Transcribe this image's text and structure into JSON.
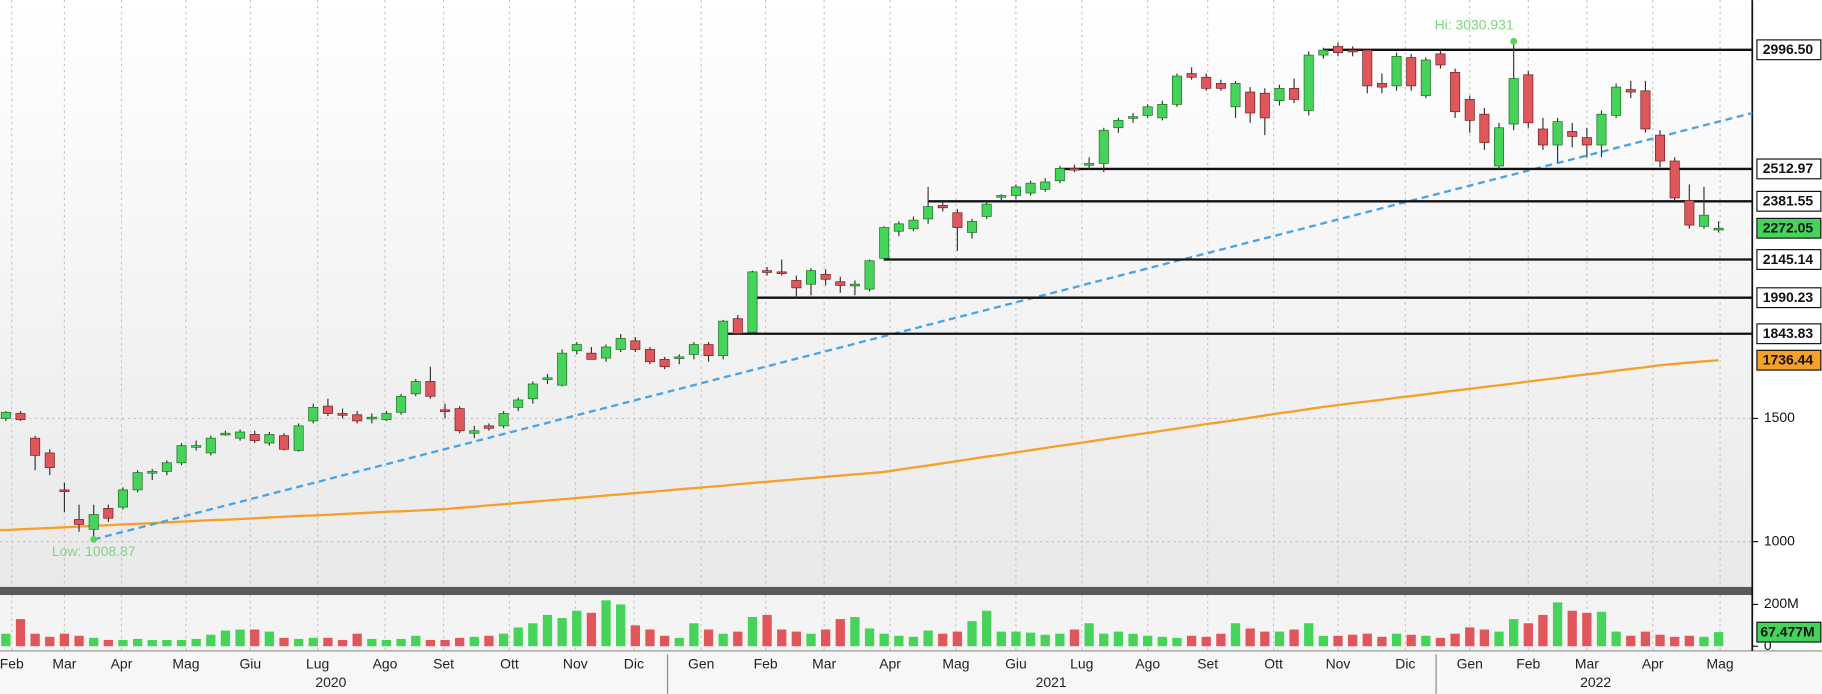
{
  "chart_data": {
    "type": "candlestick",
    "xlim": [
      -0.4,
      119.3
    ],
    "ylim": [
      816,
      3198
    ],
    "yticks": [
      1000,
      1500
    ],
    "grid": true,
    "up_color": "#46d35a",
    "down_color": "#e0575b",
    "candles": [
      [
        1500,
        1530,
        1490,
        1525
      ],
      [
        1520,
        1530,
        1490,
        1495
      ],
      [
        1420,
        1430,
        1290,
        1350
      ],
      [
        1360,
        1375,
        1270,
        1300
      ],
      [
        1210,
        1240,
        1120,
        1205
      ],
      [
        1090,
        1150,
        1040,
        1070
      ],
      [
        1050,
        1150,
        1008.87,
        1110
      ],
      [
        1135,
        1150,
        1080,
        1095
      ],
      [
        1140,
        1220,
        1130,
        1210
      ],
      [
        1210,
        1290,
        1200,
        1280
      ],
      [
        1280,
        1295,
        1250,
        1285
      ],
      [
        1285,
        1330,
        1270,
        1320
      ],
      [
        1320,
        1400,
        1310,
        1390
      ],
      [
        1385,
        1410,
        1370,
        1390
      ],
      [
        1360,
        1430,
        1350,
        1420
      ],
      [
        1440,
        1450,
        1430,
        1440
      ],
      [
        1420,
        1455,
        1410,
        1445
      ],
      [
        1435,
        1450,
        1400,
        1410
      ],
      [
        1400,
        1445,
        1390,
        1435
      ],
      [
        1430,
        1440,
        1370,
        1375
      ],
      [
        1370,
        1480,
        1365,
        1470
      ],
      [
        1490,
        1560,
        1480,
        1545
      ],
      [
        1550,
        1580,
        1510,
        1520
      ],
      [
        1520,
        1540,
        1500,
        1515
      ],
      [
        1515,
        1530,
        1480,
        1490
      ],
      [
        1505,
        1520,
        1480,
        1505
      ],
      [
        1495,
        1530,
        1490,
        1520
      ],
      [
        1525,
        1600,
        1515,
        1590
      ],
      [
        1600,
        1660,
        1590,
        1650
      ],
      [
        1650,
        1710,
        1580,
        1590
      ],
      [
        1535,
        1560,
        1500,
        1530
      ],
      [
        1540,
        1550,
        1440,
        1450
      ],
      [
        1440,
        1470,
        1420,
        1450
      ],
      [
        1470,
        1480,
        1450,
        1460
      ],
      [
        1470,
        1530,
        1460,
        1520
      ],
      [
        1545,
        1585,
        1530,
        1575
      ],
      [
        1580,
        1650,
        1560,
        1640
      ],
      [
        1660,
        1680,
        1640,
        1665
      ],
      [
        1635,
        1780,
        1630,
        1765
      ],
      [
        1775,
        1810,
        1760,
        1800
      ],
      [
        1765,
        1790,
        1740,
        1740
      ],
      [
        1745,
        1800,
        1730,
        1790
      ],
      [
        1780,
        1843,
        1770,
        1825
      ],
      [
        1815,
        1830,
        1770,
        1780
      ],
      [
        1780,
        1790,
        1720,
        1730
      ],
      [
        1740,
        1750,
        1700,
        1710
      ],
      [
        1745,
        1760,
        1720,
        1750
      ],
      [
        1760,
        1810,
        1740,
        1800
      ],
      [
        1800,
        1810,
        1730,
        1755
      ],
      [
        1755,
        1900,
        1740,
        1895
      ],
      [
        1905,
        1920,
        1840,
        1845
      ],
      [
        1850,
        2100,
        1845,
        2095
      ],
      [
        2100,
        2115,
        2080,
        2095
      ],
      [
        2095,
        2145,
        2080,
        2090
      ],
      [
        2060,
        2080,
        1990,
        2030
      ],
      [
        2045,
        2110,
        2000,
        2100
      ],
      [
        2085,
        2105,
        2040,
        2065
      ],
      [
        2055,
        2075,
        2010,
        2040
      ],
      [
        2040,
        2060,
        2000,
        2045
      ],
      [
        2025,
        2145,
        2015,
        2140
      ],
      [
        2150,
        2280,
        2140,
        2275
      ],
      [
        2260,
        2300,
        2240,
        2290
      ],
      [
        2270,
        2320,
        2260,
        2305
      ],
      [
        2310,
        2440,
        2290,
        2360
      ],
      [
        2365,
        2381,
        2340,
        2355
      ],
      [
        2335,
        2350,
        2180,
        2275
      ],
      [
        2255,
        2310,
        2230,
        2300
      ],
      [
        2320,
        2380,
        2310,
        2370
      ],
      [
        2400,
        2410,
        2380,
        2405
      ],
      [
        2405,
        2450,
        2390,
        2440
      ],
      [
        2415,
        2465,
        2405,
        2455
      ],
      [
        2430,
        2475,
        2420,
        2460
      ],
      [
        2465,
        2525,
        2455,
        2515
      ],
      [
        2515,
        2530,
        2500,
        2510
      ],
      [
        2530,
        2560,
        2510,
        2535
      ],
      [
        2535,
        2680,
        2500,
        2670
      ],
      [
        2680,
        2720,
        2660,
        2710
      ],
      [
        2720,
        2740,
        2700,
        2725
      ],
      [
        2730,
        2775,
        2720,
        2765
      ],
      [
        2720,
        2790,
        2710,
        2775
      ],
      [
        2775,
        2900,
        2765,
        2890
      ],
      [
        2900,
        2925,
        2875,
        2885
      ],
      [
        2885,
        2900,
        2830,
        2840
      ],
      [
        2860,
        2875,
        2830,
        2840
      ],
      [
        2765,
        2870,
        2720,
        2860
      ],
      [
        2825,
        2845,
        2700,
        2740
      ],
      [
        2820,
        2840,
        2650,
        2720
      ],
      [
        2790,
        2855,
        2770,
        2840
      ],
      [
        2840,
        2880,
        2780,
        2795
      ],
      [
        2750,
        2990,
        2730,
        2975
      ],
      [
        2975,
        3005,
        2960,
        2995
      ],
      [
        3010,
        3025,
        2970,
        2985
      ],
      [
        2995,
        3010,
        2970,
        2990
      ],
      [
        2995,
        3000,
        2820,
        2850
      ],
      [
        2860,
        2900,
        2820,
        2845
      ],
      [
        2850,
        2985,
        2830,
        2970
      ],
      [
        2965,
        2980,
        2830,
        2850
      ],
      [
        2810,
        2965,
        2800,
        2955
      ],
      [
        2980,
        2995,
        2920,
        2935
      ],
      [
        2905,
        2920,
        2720,
        2745
      ],
      [
        2795,
        2810,
        2660,
        2710
      ],
      [
        2735,
        2760,
        2590,
        2620
      ],
      [
        2525,
        2700,
        2510,
        2680
      ],
      [
        2695,
        3030.931,
        2670,
        2880
      ],
      [
        2895,
        2910,
        2680,
        2700
      ],
      [
        2675,
        2720,
        2590,
        2610
      ],
      [
        2610,
        2720,
        2540,
        2705
      ],
      [
        2665,
        2700,
        2600,
        2645
      ],
      [
        2640,
        2680,
        2560,
        2610
      ],
      [
        2610,
        2750,
        2560,
        2735
      ],
      [
        2730,
        2860,
        2720,
        2845
      ],
      [
        2835,
        2870,
        2800,
        2825
      ],
      [
        2830,
        2870,
        2660,
        2675
      ],
      [
        2650,
        2670,
        2520,
        2545
      ],
      [
        2545,
        2560,
        2380,
        2395
      ],
      [
        2385,
        2450,
        2270,
        2285
      ],
      [
        2280,
        2440,
        2270,
        2325
      ],
      [
        2270,
        2300,
        2255,
        2272.05
      ]
    ],
    "ma": {
      "color": "#f5a02a",
      "values": [
        1047,
        1050,
        1053,
        1055,
        1058,
        1061,
        1064,
        1067,
        1070,
        1072,
        1075,
        1078,
        1081,
        1084,
        1087,
        1089,
        1092,
        1095,
        1098,
        1101,
        1104,
        1106,
        1109,
        1112,
        1115,
        1118,
        1121,
        1123,
        1126,
        1129,
        1132,
        1137,
        1142,
        1147,
        1152,
        1157,
        1162,
        1167,
        1172,
        1177,
        1182,
        1187,
        1192,
        1197,
        1202,
        1207,
        1212,
        1217,
        1222,
        1227,
        1233,
        1238,
        1243,
        1248,
        1253,
        1258,
        1263,
        1268,
        1273,
        1278,
        1283,
        1292,
        1301,
        1309,
        1318,
        1327,
        1336,
        1345,
        1353,
        1362,
        1371,
        1380,
        1389,
        1397,
        1406,
        1415,
        1424,
        1433,
        1441,
        1450,
        1459,
        1468,
        1477,
        1485,
        1494,
        1503,
        1512,
        1521,
        1529,
        1538,
        1547,
        1554,
        1562,
        1569,
        1576,
        1584,
        1591,
        1598,
        1606,
        1613,
        1620,
        1628,
        1635,
        1642,
        1650,
        1657,
        1664,
        1672,
        1679,
        1686,
        1694,
        1701,
        1708,
        1716,
        1721,
        1727,
        1732,
        1736.44
      ]
    },
    "trendline": {
      "color": "#4aa3e6",
      "x": [
        6,
        119.3
      ],
      "values": [
        1008.87,
        2740
      ]
    },
    "levels": {
      "values": [
        2996.5,
        2512.97,
        2381.55,
        2145.14,
        1990.23,
        1843.83
      ],
      "value_labels": [
        "2996.50",
        "2512.97",
        "2381.55",
        "2145.14",
        "1990.23",
        "1843.83"
      ]
    },
    "hi_label": "Hi: 3030.931",
    "low_label": "Low: 1008.87",
    "volume": {
      "ylim": [
        0,
        245
      ],
      "yticks": [
        {
          "value": 200,
          "label": "200M"
        },
        0
      ],
      "last_label": "67.477M",
      "values": [
        60,
        130,
        60,
        45,
        60,
        50,
        40,
        30,
        30,
        35,
        30,
        30,
        30,
        35,
        55,
        75,
        80,
        80,
        70,
        40,
        35,
        40,
        40,
        30,
        60,
        35,
        30,
        35,
        50,
        30,
        30,
        40,
        45,
        50,
        60,
        90,
        110,
        150,
        135,
        170,
        160,
        220,
        200,
        100,
        80,
        50,
        40,
        110,
        80,
        60,
        70,
        140,
        150,
        80,
        70,
        60,
        80,
        130,
        140,
        85,
        60,
        50,
        45,
        75,
        60,
        70,
        120,
        170,
        70,
        70,
        65,
        55,
        60,
        80,
        110,
        60,
        70,
        60,
        50,
        45,
        40,
        50,
        45,
        60,
        110,
        85,
        70,
        70,
        80,
        110,
        50,
        50,
        55,
        60,
        45,
        60,
        55,
        50,
        40,
        60,
        90,
        80,
        70,
        130,
        110,
        150,
        210,
        170,
        160,
        165,
        70,
        50,
        70,
        55,
        45,
        50,
        45,
        67.477
      ]
    },
    "xticks": [
      {
        "value": 0.4,
        "label": "Feb"
      },
      {
        "value": 4,
        "label": "Mar"
      },
      {
        "value": 7.9,
        "label": "Apr"
      },
      {
        "value": 12.3,
        "label": "Mag"
      },
      {
        "value": 16.7,
        "label": "Giu"
      },
      {
        "value": 21.3,
        "label": "Lug"
      },
      {
        "value": 25.9,
        "label": "Ago"
      },
      {
        "value": 29.9,
        "label": "Set"
      },
      {
        "value": 34.4,
        "label": "Ott"
      },
      {
        "value": 38.9,
        "label": "Nov"
      },
      {
        "value": 42.9,
        "label": "Dic"
      },
      {
        "value": 47.5,
        "label": "Gen"
      },
      {
        "value": 51.9,
        "label": "Feb"
      },
      {
        "value": 55.9,
        "label": "Mar"
      },
      {
        "value": 60.4,
        "label": "Apr"
      },
      {
        "value": 64.9,
        "label": "Mag"
      },
      {
        "value": 69,
        "label": "Giu"
      },
      {
        "value": 73.5,
        "label": "Lug"
      },
      {
        "value": 78,
        "label": "Ago"
      },
      {
        "value": 82.1,
        "label": "Set"
      },
      {
        "value": 86.6,
        "label": "Ott"
      },
      {
        "value": 91,
        "label": "Nov"
      },
      {
        "value": 95.6,
        "label": "Dic"
      },
      {
        "value": 100,
        "label": "Gen"
      },
      {
        "value": 104,
        "label": "Feb"
      },
      {
        "value": 108,
        "label": "Mar"
      },
      {
        "value": 112.5,
        "label": "Apr"
      },
      {
        "value": 117.1,
        "label": "Mag"
      }
    ],
    "years": [
      {
        "value": 22.2,
        "label": "2020"
      },
      {
        "value": 71.4,
        "label": "2021"
      },
      {
        "value": 108.6,
        "label": "2022"
      }
    ]
  }
}
